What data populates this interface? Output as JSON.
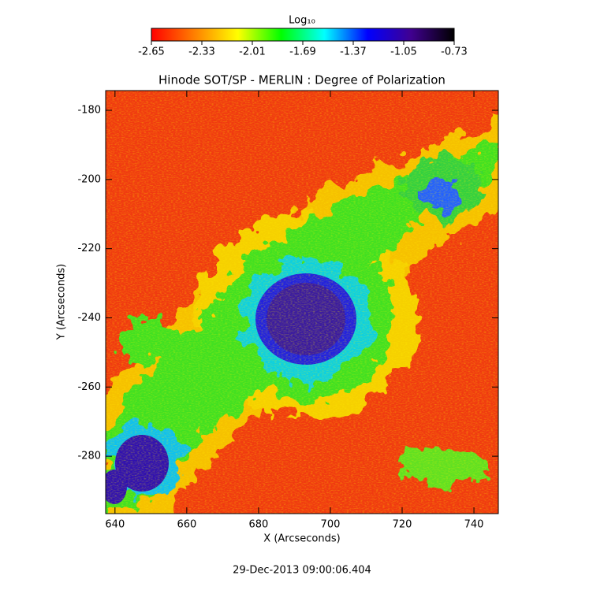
{
  "chart_data": {
    "type": "heatmap",
    "title": "Hinode SOT/SP - MERLIN : Degree of Polarization",
    "x_label": "X (Arcseconds)",
    "y_label": "Y (Arcseconds)",
    "footer": "29-Dec-2013 09:00:06.404",
    "xlim": [
      637.4,
      746.8
    ],
    "xticks": [
      640,
      660,
      680,
      700,
      720,
      740
    ],
    "ylim": [
      -296.6,
      -174.3
    ],
    "yticks": [
      -280,
      -260,
      -240,
      -220,
      -200,
      -180
    ],
    "colorbar": {
      "label": "Log₁₀",
      "lim": [
        -2.65,
        -0.73
      ],
      "ticks": [
        -2.65,
        -2.33,
        -2.01,
        -1.69,
        -1.37,
        -1.05,
        -0.73
      ],
      "colors": [
        "#ff0000",
        "#ff8000",
        "#ffff00",
        "#00ff00",
        "#00ffff",
        "#0000ff",
        "#400090",
        "#000000"
      ]
    }
  }
}
